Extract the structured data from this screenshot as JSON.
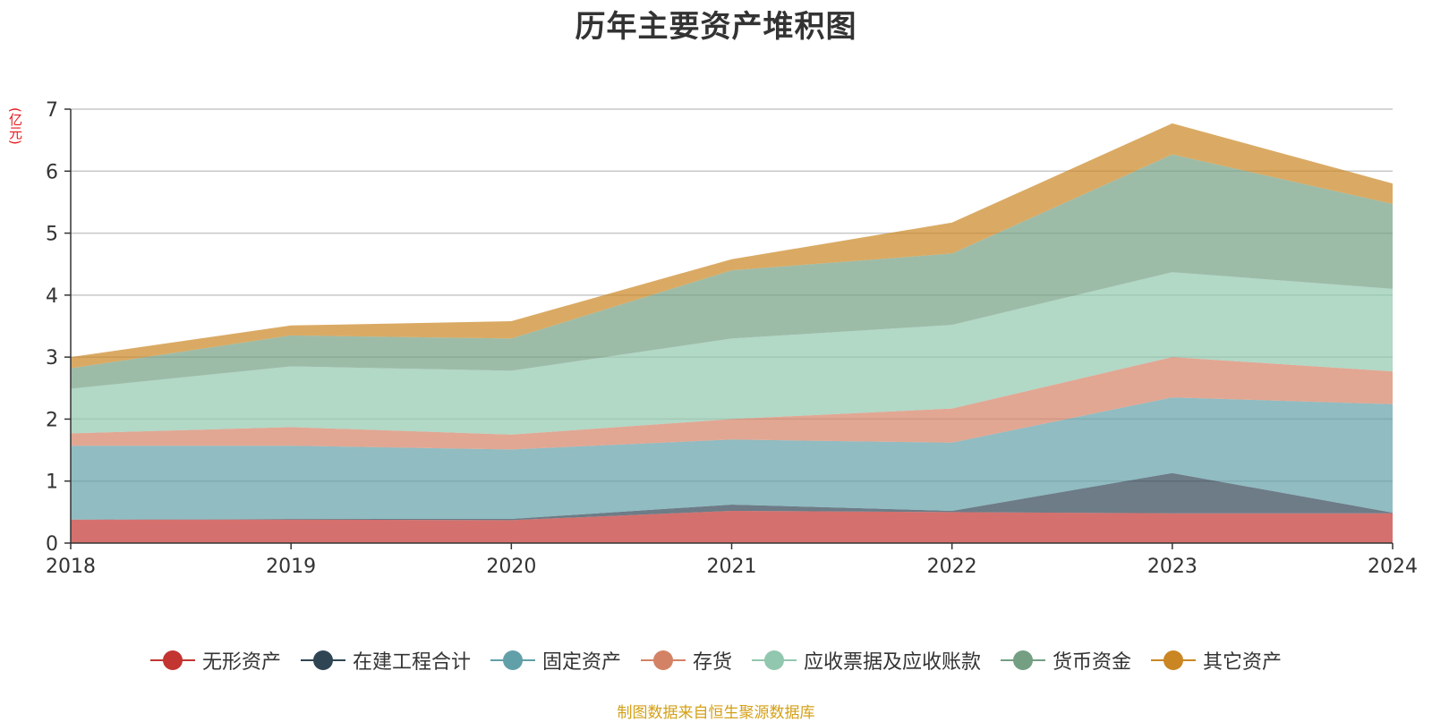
{
  "chart_data": {
    "type": "area",
    "stacked": true,
    "title": "历年主要资产堆积图",
    "ylabel": "(亿元)",
    "categories": [
      "2018",
      "2019",
      "2020",
      "2021",
      "2022",
      "2023",
      "2024"
    ],
    "ylim": [
      0,
      7
    ],
    "yticks": [
      "0",
      "1",
      "2",
      "3",
      "4",
      "5",
      "6",
      "7"
    ],
    "grid": true,
    "legend_position": "bottom",
    "series": [
      {
        "name": "无形资产",
        "color": "#c23531",
        "values": [
          0.38,
          0.38,
          0.37,
          0.52,
          0.5,
          0.48,
          0.48
        ]
      },
      {
        "name": "在建工程合计",
        "color": "#2f4554",
        "values": [
          0.0,
          0.01,
          0.02,
          0.1,
          0.02,
          0.65,
          0.01
        ]
      },
      {
        "name": "固定资产",
        "color": "#61a0a8",
        "values": [
          1.19,
          1.18,
          1.12,
          1.05,
          1.1,
          1.22,
          1.75
        ]
      },
      {
        "name": "存货",
        "color": "#d48265",
        "values": [
          0.2,
          0.3,
          0.24,
          0.33,
          0.55,
          0.65,
          0.53
        ]
      },
      {
        "name": "应收票据及应收账款",
        "color": "#91c7ae",
        "values": [
          0.72,
          0.98,
          1.03,
          1.3,
          1.35,
          1.37,
          1.33
        ]
      },
      {
        "name": "货币资金",
        "color": "#749f83",
        "values": [
          0.33,
          0.5,
          0.52,
          1.1,
          1.15,
          1.9,
          1.37
        ]
      },
      {
        "name": "其它资产",
        "color": "#ca8622",
        "values": [
          0.18,
          0.16,
          0.28,
          0.18,
          0.5,
          0.5,
          0.33
        ]
      }
    ]
  },
  "footer": {
    "source": "制图数据来自恒生聚源数据库"
  }
}
